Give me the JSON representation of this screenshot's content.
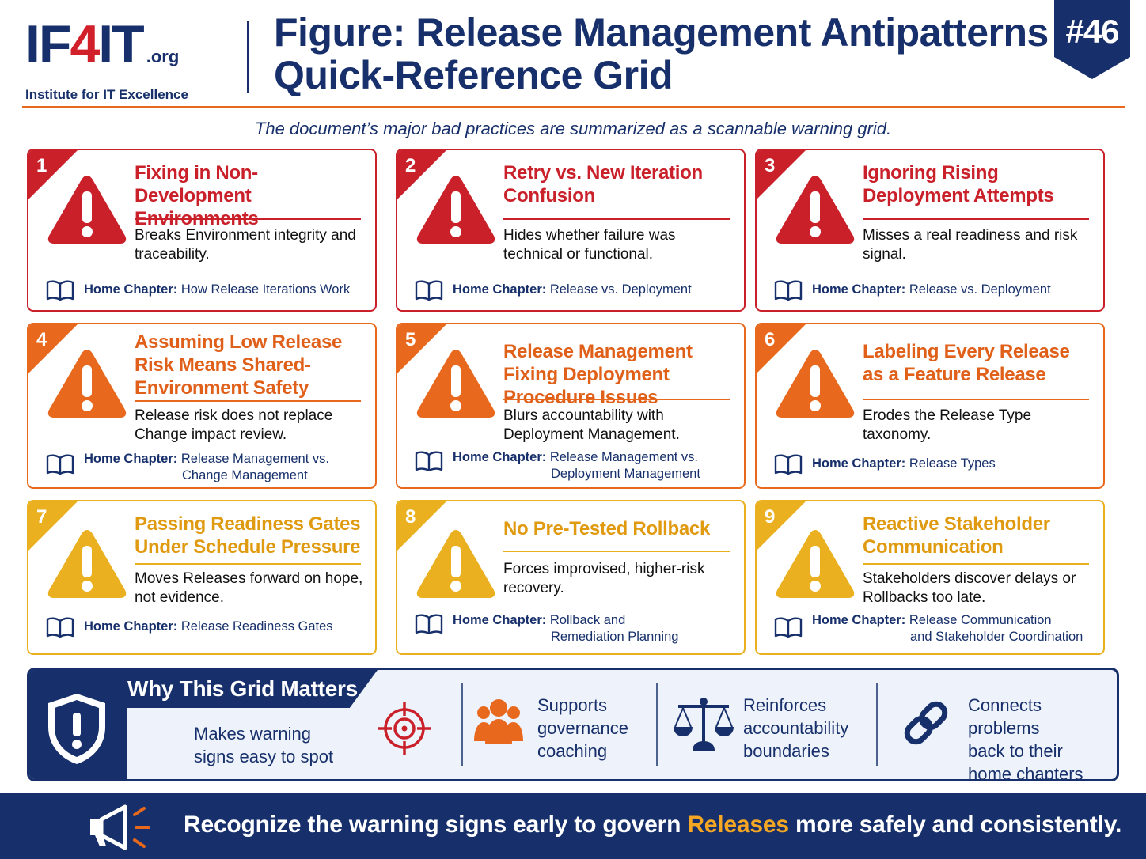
{
  "header": {
    "logo_prefix": "IF",
    "logo_four": "4",
    "logo_suffix": "IT",
    "logo_org": ".org",
    "logo_tagline": "Institute for IT Excellence",
    "title_line1": "Figure: Release Management Antipatterns",
    "title_line2": "Quick-Reference Grid",
    "badge": "#46"
  },
  "subtitle": "The document’s major bad practices are summarized as a scannable warning grid.",
  "home_chapter_label": "Home Chapter:",
  "colors": {
    "navy": "#17306b",
    "red": "#c9202a",
    "orange": "#e8691e",
    "yellow": "#eab020",
    "highlight": "#f5a623"
  },
  "cards": [
    {
      "number": "1",
      "title": "Fixing in Non-Development Environments",
      "description": "Breaks Environment integrity and traceability.",
      "chapter_line1": "How Release Iterations Work",
      "chapter_line2": "",
      "severity": "red",
      "icon": "warning-triangle-icon"
    },
    {
      "number": "2",
      "title": "Retry vs. New Iteration Confusion",
      "description": "Hides whether failure was technical or functional.",
      "chapter_line1": "Release vs. Deployment",
      "chapter_line2": "",
      "severity": "red",
      "icon": "warning-triangle-icon"
    },
    {
      "number": "3",
      "title": "Ignoring Rising Deployment Attempts",
      "description": "Misses a real readiness and risk signal.",
      "chapter_line1": "Release vs. Deployment",
      "chapter_line2": "",
      "severity": "red",
      "icon": "warning-triangle-icon"
    },
    {
      "number": "4",
      "title": "Assuming Low Release Risk Means Shared-Environment Safety",
      "description": "Release risk does not replace Change impact review.",
      "chapter_line1": "Release Management vs.",
      "chapter_line2": "Change Management",
      "severity": "orange",
      "icon": "warning-triangle-icon"
    },
    {
      "number": "5",
      "title": "Release Management Fixing Deployment Procedure Issues",
      "description": "Blurs accountability with Deployment Management.",
      "chapter_line1": "Release Management vs.",
      "chapter_line2": "Deployment Management",
      "severity": "orange",
      "icon": "warning-triangle-icon"
    },
    {
      "number": "6",
      "title": "Labeling Every Release as a Feature Release",
      "description": "Erodes the Release Type taxonomy.",
      "chapter_line1": "Release Types",
      "chapter_line2": "",
      "severity": "orange",
      "icon": "warning-triangle-icon"
    },
    {
      "number": "7",
      "title": "Passing Readiness Gates Under Schedule Pressure",
      "description": "Moves Releases forward on hope, not evidence.",
      "chapter_line1": "Release Readiness Gates",
      "chapter_line2": "",
      "severity": "yellow",
      "icon": "warning-triangle-icon"
    },
    {
      "number": "8",
      "title": "No Pre-Tested Rollback",
      "description": "Forces improvised, higher-risk recovery.",
      "chapter_line1": "Rollback and",
      "chapter_line2": "Remediation Planning",
      "severity": "yellow",
      "icon": "warning-triangle-icon"
    },
    {
      "number": "9",
      "title": "Reactive Stakeholder Communication",
      "description": "Stakeholders discover delays or Rollbacks too late.",
      "chapter_line1": "Release Communication",
      "chapter_line2": "and Stakeholder Coordination",
      "severity": "yellow",
      "icon": "warning-triangle-icon"
    }
  ],
  "why": {
    "title": "Why This Grid Matters",
    "items": [
      {
        "line1": "Makes warning",
        "line2": "signs easy to spot",
        "line3": "",
        "icon": "target-icon"
      },
      {
        "line1": "Supports",
        "line2": "governance",
        "line3": "coaching",
        "icon": "people-group-icon"
      },
      {
        "line1": "Reinforces",
        "line2": "accountability",
        "line3": "boundaries",
        "icon": "scales-icon"
      },
      {
        "line1": "Connects problems",
        "line2": "back to their",
        "line3": "home chapters",
        "icon": "chain-link-icon"
      }
    ]
  },
  "footer": {
    "text_before": "Recognize the warning signs early to govern ",
    "text_highlight": "Releases",
    "text_after": " more safely and consistently.",
    "icon": "megaphone-icon"
  }
}
